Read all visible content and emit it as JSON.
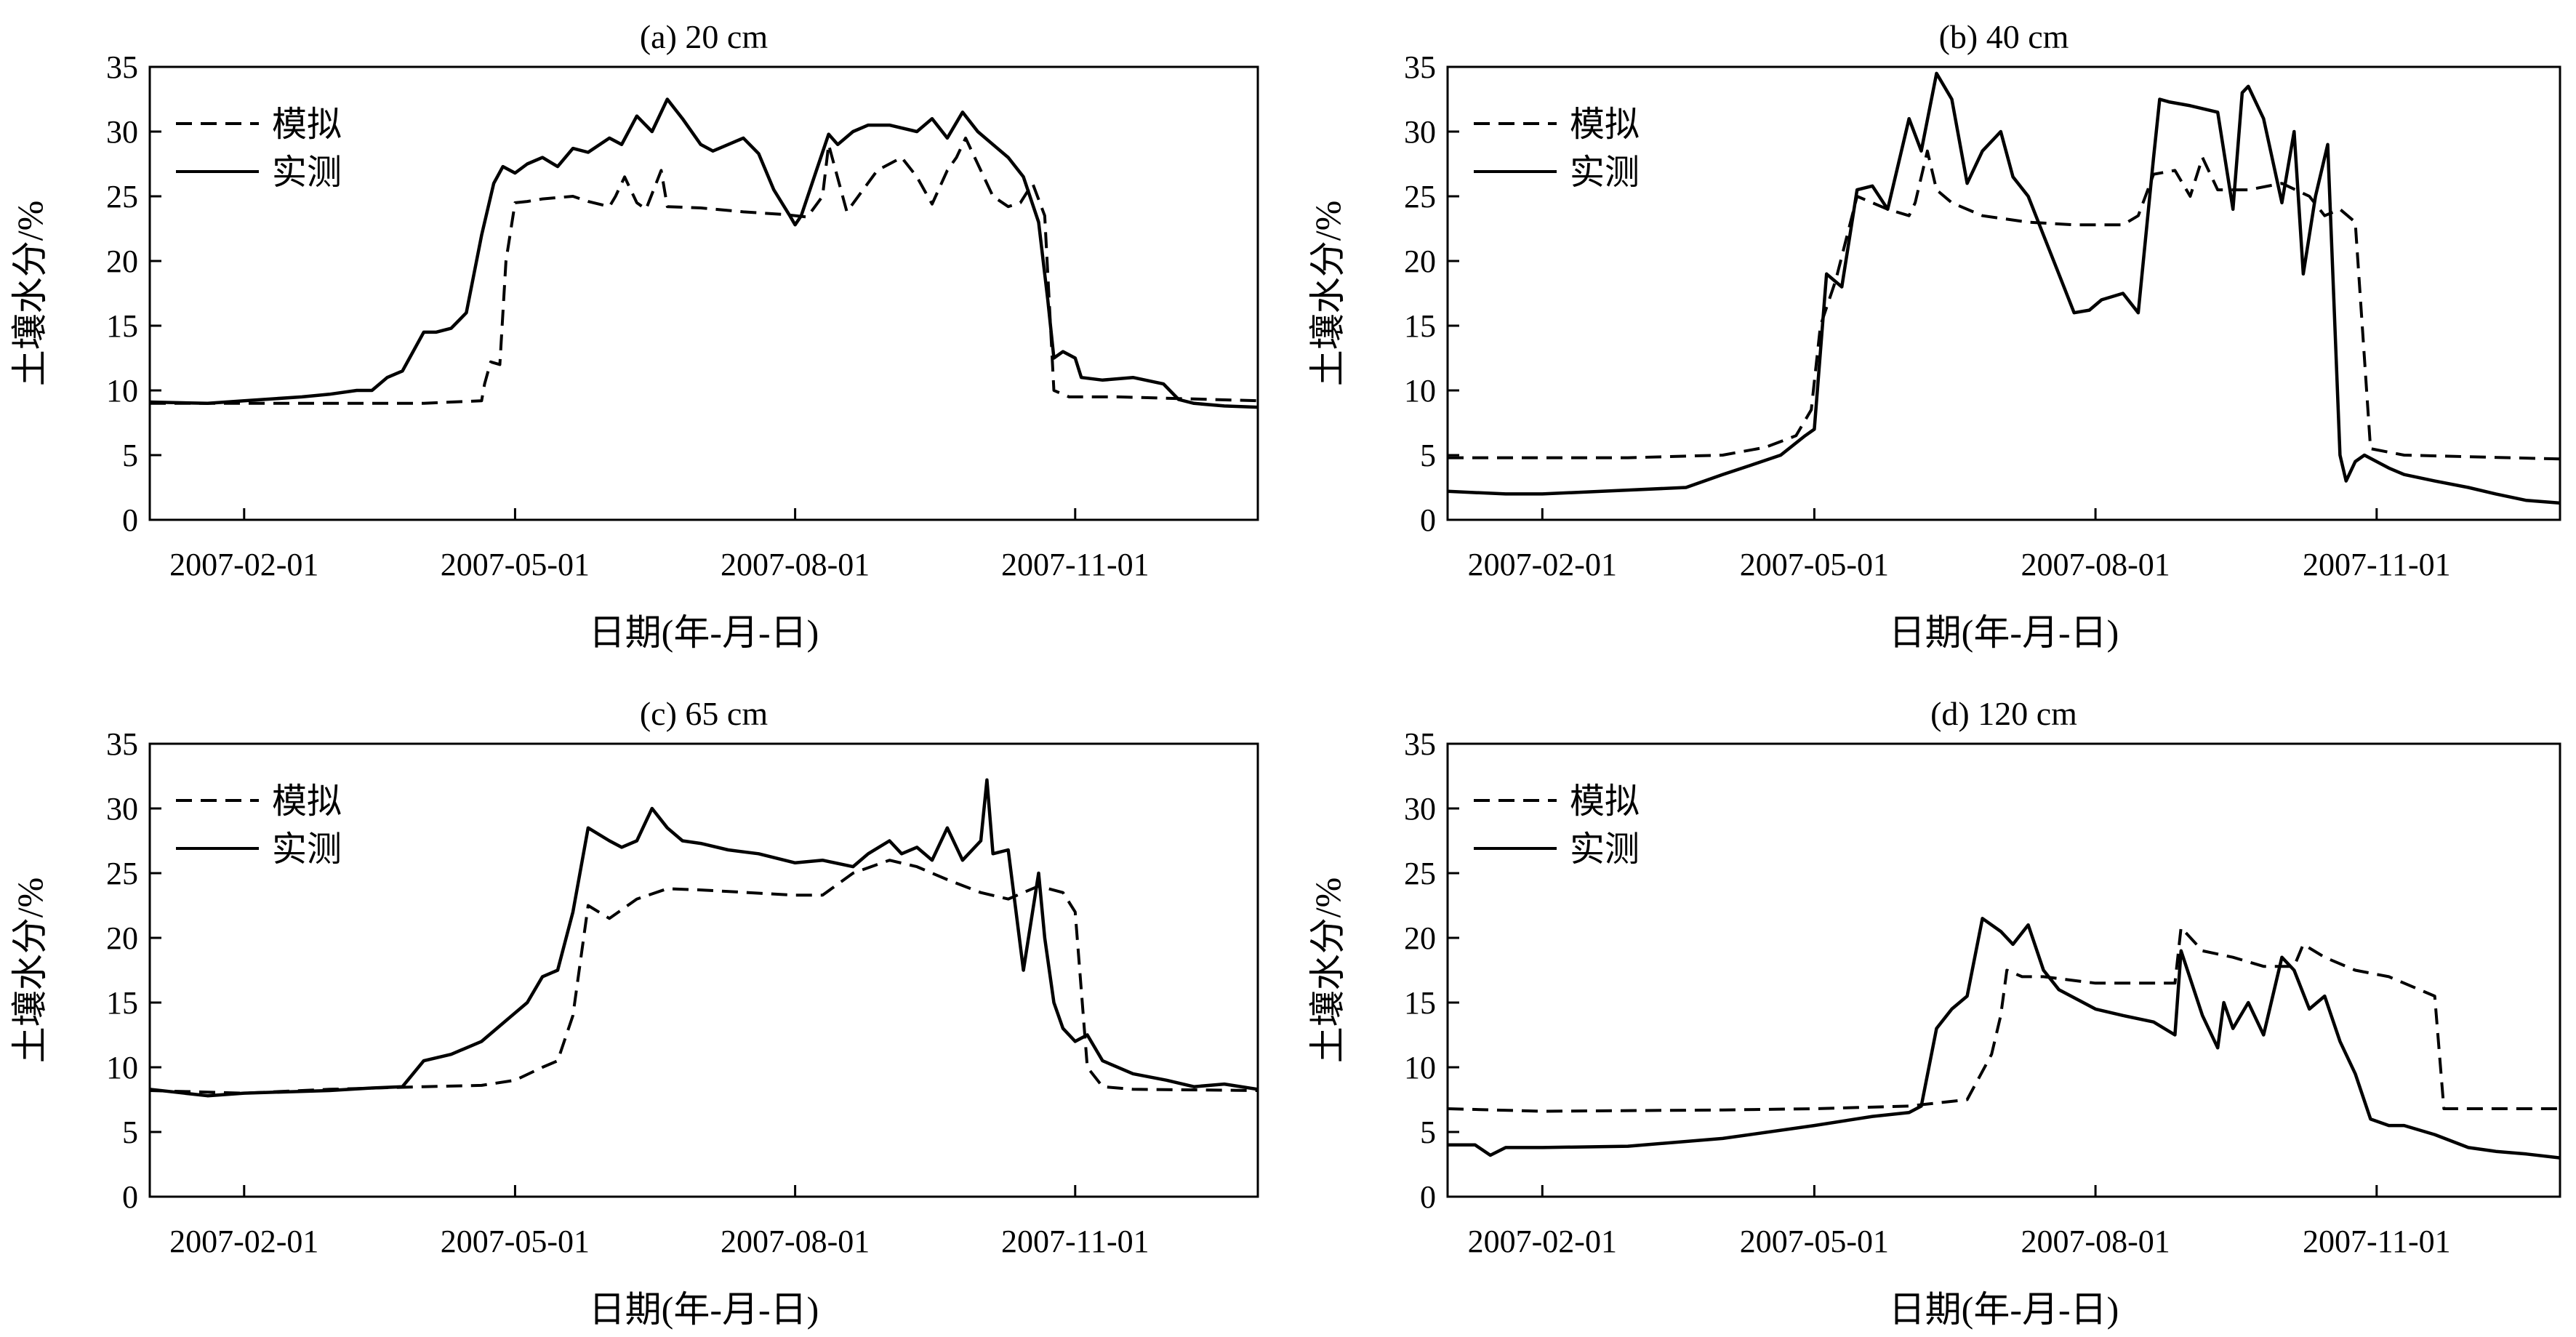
{
  "chart_data": [
    {
      "type": "line",
      "title": "(a) 20 cm",
      "xlabel": "日期(年-月-日)",
      "ylabel": "土壤水分/%",
      "ylim": [
        0,
        35
      ],
      "yticks": [
        0,
        5,
        10,
        15,
        20,
        25,
        30,
        35
      ],
      "xlim": [
        "2007-01-01",
        "2007-12-31"
      ],
      "xticks": [
        "2007-02-01",
        "2007-05-01",
        "2007-08-01",
        "2007-11-01"
      ],
      "legend_position": "top-left",
      "series": [
        {
          "name": "模拟",
          "style": "dashed",
          "x": [
            "2007-01-01",
            "2007-02-01",
            "2007-03-01",
            "2007-04-01",
            "2007-04-10",
            "2007-04-20",
            "2007-04-21",
            "2007-04-23",
            "2007-04-26",
            "2007-04-28",
            "2007-05-01",
            "2007-05-05",
            "2007-05-10",
            "2007-05-20",
            "2007-05-25",
            "2007-06-01",
            "2007-06-03",
            "2007-06-06",
            "2007-06-10",
            "2007-06-13",
            "2007-06-18",
            "2007-06-20",
            "2007-07-01",
            "2007-07-15",
            "2007-07-28",
            "2007-08-05",
            "2007-08-10",
            "2007-08-12",
            "2007-08-18",
            "2007-08-28",
            "2007-09-05",
            "2007-09-10",
            "2007-09-15",
            "2007-09-20",
            "2007-09-23",
            "2007-09-26",
            "2007-10-05",
            "2007-10-10",
            "2007-10-14",
            "2007-10-18",
            "2007-10-22",
            "2007-10-25",
            "2007-10-30",
            "2007-11-15",
            "2007-12-31"
          ],
          "y": [
            9.0,
            9.0,
            9.0,
            9.0,
            9.1,
            9.2,
            10.5,
            12.2,
            12.0,
            20.0,
            24.5,
            24.6,
            24.8,
            25.0,
            24.6,
            24.2,
            25.0,
            26.5,
            24.5,
            24.0,
            27.0,
            24.2,
            24.1,
            23.8,
            23.6,
            23.4,
            25.0,
            29.0,
            23.8,
            27.0,
            28.0,
            26.5,
            24.4,
            27.0,
            28.0,
            29.5,
            25.0,
            24.2,
            24.5,
            26.0,
            23.5,
            10.0,
            9.5,
            9.5,
            9.2
          ]
        },
        {
          "name": "实测",
          "style": "solid",
          "x": [
            "2007-01-01",
            "2007-01-20",
            "2007-02-01",
            "2007-02-20",
            "2007-03-01",
            "2007-03-10",
            "2007-03-15",
            "2007-03-20",
            "2007-03-25",
            "2007-04-01",
            "2007-04-05",
            "2007-04-10",
            "2007-04-15",
            "2007-04-20",
            "2007-04-24",
            "2007-04-27",
            "2007-05-01",
            "2007-05-05",
            "2007-05-10",
            "2007-05-15",
            "2007-05-20",
            "2007-05-25",
            "2007-06-01",
            "2007-06-05",
            "2007-06-10",
            "2007-06-15",
            "2007-06-20",
            "2007-06-25",
            "2007-07-01",
            "2007-07-05",
            "2007-07-10",
            "2007-07-15",
            "2007-07-20",
            "2007-07-25",
            "2007-07-30",
            "2007-08-01",
            "2007-08-03",
            "2007-08-08",
            "2007-08-12",
            "2007-08-15",
            "2007-08-20",
            "2007-08-25",
            "2007-09-01",
            "2007-09-10",
            "2007-09-15",
            "2007-09-20",
            "2007-09-25",
            "2007-09-30",
            "2007-10-05",
            "2007-10-10",
            "2007-10-15",
            "2007-10-20",
            "2007-10-23",
            "2007-10-25",
            "2007-10-28",
            "2007-11-01",
            "2007-11-03",
            "2007-11-10",
            "2007-11-20",
            "2007-11-30",
            "2007-12-05",
            "2007-12-10",
            "2007-12-20",
            "2007-12-31"
          ],
          "y": [
            9.1,
            9.0,
            9.2,
            9.5,
            9.7,
            10.0,
            10.0,
            11.0,
            11.5,
            14.5,
            14.5,
            14.8,
            16.0,
            22.0,
            26.0,
            27.3,
            26.8,
            27.5,
            28.0,
            27.3,
            28.7,
            28.4,
            29.5,
            29.0,
            31.2,
            30.0,
            32.5,
            31.0,
            29.0,
            28.5,
            29.0,
            29.5,
            28.3,
            25.5,
            23.6,
            22.8,
            23.5,
            27.0,
            29.8,
            29.0,
            30.0,
            30.5,
            30.5,
            30.0,
            31.0,
            29.5,
            31.5,
            30.0,
            29.0,
            28.0,
            26.5,
            23.0,
            17.0,
            12.5,
            13.0,
            12.5,
            11.0,
            10.8,
            11.0,
            10.5,
            9.3,
            9.0,
            8.8,
            8.7
          ]
        }
      ]
    },
    {
      "type": "line",
      "title": "(b) 40 cm",
      "xlabel": "日期(年-月-日)",
      "ylabel": "土壤水分/%",
      "ylim": [
        0,
        35
      ],
      "yticks": [
        0,
        5,
        10,
        15,
        20,
        25,
        30,
        35
      ],
      "xlim": [
        "2007-01-01",
        "2007-12-31"
      ],
      "xticks": [
        "2007-02-01",
        "2007-05-01",
        "2007-08-01",
        "2007-11-01"
      ],
      "legend_position": "top-left",
      "series": [
        {
          "name": "模拟",
          "style": "dashed",
          "x": [
            "2007-01-01",
            "2007-03-01",
            "2007-04-01",
            "2007-04-15",
            "2007-04-25",
            "2007-04-30",
            "2007-05-03",
            "2007-05-08",
            "2007-05-15",
            "2007-05-25",
            "2007-06-01",
            "2007-06-03",
            "2007-06-07",
            "2007-06-10",
            "2007-06-15",
            "2007-06-25",
            "2007-07-10",
            "2007-07-25",
            "2007-08-10",
            "2007-08-15",
            "2007-08-20",
            "2007-08-27",
            "2007-09-01",
            "2007-09-05",
            "2007-09-10",
            "2007-09-20",
            "2007-10-01",
            "2007-10-10",
            "2007-10-15",
            "2007-10-20",
            "2007-10-25",
            "2007-10-30",
            "2007-11-10",
            "2007-12-31"
          ],
          "y": [
            4.8,
            4.8,
            5.0,
            5.6,
            6.5,
            8.5,
            15.0,
            18.5,
            25.0,
            24.0,
            23.5,
            24.5,
            28.5,
            25.5,
            24.5,
            23.5,
            23.0,
            22.8,
            22.8,
            23.5,
            26.7,
            27.0,
            25.0,
            28.0,
            25.5,
            25.5,
            26.0,
            25.0,
            23.5,
            24.0,
            23.0,
            5.5,
            5.0,
            4.7
          ]
        },
        {
          "name": "实测",
          "style": "solid",
          "x": [
            "2007-01-01",
            "2007-01-20",
            "2007-02-01",
            "2007-03-01",
            "2007-03-20",
            "2007-04-01",
            "2007-04-10",
            "2007-04-20",
            "2007-04-28",
            "2007-05-01",
            "2007-05-05",
            "2007-05-10",
            "2007-05-15",
            "2007-05-20",
            "2007-05-25",
            "2007-06-01",
            "2007-06-05",
            "2007-06-10",
            "2007-06-15",
            "2007-06-20",
            "2007-06-25",
            "2007-07-01",
            "2007-07-05",
            "2007-07-10",
            "2007-07-15",
            "2007-07-20",
            "2007-07-25",
            "2007-07-30",
            "2007-08-03",
            "2007-08-10",
            "2007-08-15",
            "2007-08-20",
            "2007-08-22",
            "2007-08-25",
            "2007-09-01",
            "2007-09-10",
            "2007-09-15",
            "2007-09-18",
            "2007-09-20",
            "2007-09-25",
            "2007-10-01",
            "2007-10-05",
            "2007-10-08",
            "2007-10-12",
            "2007-10-16",
            "2007-10-20",
            "2007-10-22",
            "2007-10-25",
            "2007-10-28",
            "2007-11-05",
            "2007-11-10",
            "2007-11-20",
            "2007-12-01",
            "2007-12-10",
            "2007-12-20",
            "2007-12-31"
          ],
          "y": [
            2.2,
            2.0,
            2.0,
            2.3,
            2.5,
            3.5,
            4.2,
            5.0,
            6.5,
            7.0,
            19.0,
            18.0,
            25.5,
            25.8,
            24.0,
            31.0,
            28.5,
            34.5,
            32.5,
            26.0,
            28.5,
            30.0,
            26.5,
            25.0,
            22.0,
            19.0,
            16.0,
            16.2,
            17.0,
            17.5,
            16.0,
            28.0,
            32.5,
            32.3,
            32.0,
            31.5,
            24.0,
            33.0,
            33.5,
            31.0,
            24.5,
            30.0,
            19.0,
            25.0,
            29.0,
            5.0,
            3.0,
            4.5,
            5.0,
            4.0,
            3.5,
            3.0,
            2.5,
            2.0,
            1.5,
            1.3
          ]
        }
      ]
    },
    {
      "type": "line",
      "title": "(c) 65 cm",
      "xlabel": "日期(年-月-日)",
      "ylabel": "土壤水分/%",
      "ylim": [
        0,
        35
      ],
      "yticks": [
        0,
        5,
        10,
        15,
        20,
        25,
        30,
        35
      ],
      "xlim": [
        "2007-01-01",
        "2007-12-31"
      ],
      "xticks": [
        "2007-02-01",
        "2007-05-01",
        "2007-08-01",
        "2007-11-01"
      ],
      "legend_position": "top-left",
      "series": [
        {
          "name": "模拟",
          "style": "dashed",
          "x": [
            "2007-01-01",
            "2007-02-01",
            "2007-03-01",
            "2007-04-01",
            "2007-04-20",
            "2007-05-01",
            "2007-05-10",
            "2007-05-15",
            "2007-05-20",
            "2007-05-25",
            "2007-06-01",
            "2007-06-10",
            "2007-06-20",
            "2007-07-01",
            "2007-08-01",
            "2007-08-10",
            "2007-08-20",
            "2007-09-01",
            "2007-09-10",
            "2007-09-20",
            "2007-10-01",
            "2007-10-10",
            "2007-10-20",
            "2007-10-28",
            "2007-11-01",
            "2007-11-05",
            "2007-11-10",
            "2007-11-20",
            "2007-12-31"
          ],
          "y": [
            8.2,
            8.0,
            8.3,
            8.5,
            8.6,
            9.0,
            10.0,
            10.5,
            14.0,
            22.5,
            21.5,
            23.0,
            23.8,
            23.7,
            23.3,
            23.3,
            25.0,
            26.0,
            25.5,
            24.5,
            23.5,
            23.0,
            24.0,
            23.5,
            22.0,
            10.0,
            8.5,
            8.3,
            8.2
          ]
        },
        {
          "name": "实测",
          "style": "solid",
          "x": [
            "2007-01-01",
            "2007-01-20",
            "2007-02-01",
            "2007-03-01",
            "2007-03-15",
            "2007-03-25",
            "2007-04-01",
            "2007-04-10",
            "2007-04-20",
            "2007-04-30",
            "2007-05-05",
            "2007-05-10",
            "2007-05-15",
            "2007-05-20",
            "2007-05-25",
            "2007-06-01",
            "2007-06-05",
            "2007-06-10",
            "2007-06-15",
            "2007-06-20",
            "2007-06-25",
            "2007-07-01",
            "2007-07-10",
            "2007-07-20",
            "2007-08-01",
            "2007-08-10",
            "2007-08-20",
            "2007-08-25",
            "2007-09-01",
            "2007-09-05",
            "2007-09-10",
            "2007-09-15",
            "2007-09-20",
            "2007-09-25",
            "2007-10-01",
            "2007-10-03",
            "2007-10-05",
            "2007-10-10",
            "2007-10-15",
            "2007-10-20",
            "2007-10-22",
            "2007-10-25",
            "2007-10-28",
            "2007-11-01",
            "2007-11-05",
            "2007-11-10",
            "2007-11-20",
            "2007-12-01",
            "2007-12-10",
            "2007-12-20",
            "2007-12-31"
          ],
          "y": [
            8.3,
            7.8,
            8.0,
            8.2,
            8.4,
            8.5,
            10.5,
            11.0,
            12.0,
            14.0,
            15.0,
            17.0,
            17.5,
            22.0,
            28.5,
            27.5,
            27.0,
            27.5,
            30.0,
            28.5,
            27.5,
            27.3,
            26.8,
            26.5,
            25.8,
            26.0,
            25.5,
            26.5,
            27.5,
            26.5,
            27.0,
            26.0,
            28.5,
            26.0,
            27.5,
            32.2,
            26.5,
            26.8,
            17.5,
            25.0,
            20.0,
            15.0,
            13.0,
            12.0,
            12.5,
            10.5,
            9.5,
            9.0,
            8.5,
            8.7,
            8.3
          ]
        }
      ]
    },
    {
      "type": "line",
      "title": "(d) 120 cm",
      "xlabel": "日期(年-月-日)",
      "ylabel": "土壤水分/%",
      "ylim": [
        0,
        35
      ],
      "yticks": [
        0,
        5,
        10,
        15,
        20,
        25,
        30,
        35
      ],
      "xlim": [
        "2007-01-01",
        "2007-12-31"
      ],
      "xticks": [
        "2007-02-01",
        "2007-05-01",
        "2007-08-01",
        "2007-11-01"
      ],
      "legend_position": "top-left",
      "series": [
        {
          "name": "模拟",
          "style": "dashed",
          "x": [
            "2007-01-01",
            "2007-02-01",
            "2007-04-01",
            "2007-05-01",
            "2007-06-01",
            "2007-06-20",
            "2007-06-28",
            "2007-07-01",
            "2007-07-03",
            "2007-07-08",
            "2007-07-15",
            "2007-08-01",
            "2007-08-15",
            "2007-08-27",
            "2007-08-29",
            "2007-09-05",
            "2007-09-15",
            "2007-09-25",
            "2007-10-05",
            "2007-10-08",
            "2007-10-15",
            "2007-10-25",
            "2007-11-05",
            "2007-11-15",
            "2007-11-20",
            "2007-11-23",
            "2007-12-01",
            "2007-12-31"
          ],
          "y": [
            6.8,
            6.6,
            6.7,
            6.8,
            7.0,
            7.5,
            11.0,
            14.0,
            17.5,
            17.0,
            17.0,
            16.5,
            16.5,
            16.5,
            20.8,
            19.0,
            18.5,
            17.8,
            17.8,
            19.5,
            18.5,
            17.5,
            17.0,
            16.0,
            15.5,
            6.8,
            6.8,
            6.8
          ]
        },
        {
          "name": "实测",
          "style": "solid",
          "x": [
            "2007-01-01",
            "2007-01-10",
            "2007-01-15",
            "2007-01-20",
            "2007-02-01",
            "2007-03-01",
            "2007-04-01",
            "2007-05-01",
            "2007-05-20",
            "2007-06-01",
            "2007-06-05",
            "2007-06-10",
            "2007-06-15",
            "2007-06-20",
            "2007-06-25",
            "2007-07-01",
            "2007-07-05",
            "2007-07-10",
            "2007-07-15",
            "2007-07-20",
            "2007-08-01",
            "2007-08-10",
            "2007-08-20",
            "2007-08-27",
            "2007-08-29",
            "2007-09-05",
            "2007-09-10",
            "2007-09-12",
            "2007-09-15",
            "2007-09-20",
            "2007-09-25",
            "2007-10-01",
            "2007-10-05",
            "2007-10-10",
            "2007-10-15",
            "2007-10-20",
            "2007-10-25",
            "2007-10-30",
            "2007-11-05",
            "2007-11-10",
            "2007-11-20",
            "2007-12-01",
            "2007-12-10",
            "2007-12-20",
            "2007-12-31"
          ],
          "y": [
            4.0,
            4.0,
            3.2,
            3.8,
            3.8,
            3.9,
            4.5,
            5.5,
            6.2,
            6.5,
            7.0,
            13.0,
            14.5,
            15.5,
            21.5,
            20.5,
            19.5,
            21.0,
            17.5,
            16.0,
            14.5,
            14.0,
            13.5,
            12.5,
            19.0,
            14.0,
            11.5,
            15.0,
            13.0,
            15.0,
            12.5,
            18.5,
            17.5,
            14.5,
            15.5,
            12.0,
            9.5,
            6.0,
            5.5,
            5.5,
            4.8,
            3.8,
            3.5,
            3.3,
            3.0
          ]
        }
      ]
    }
  ]
}
